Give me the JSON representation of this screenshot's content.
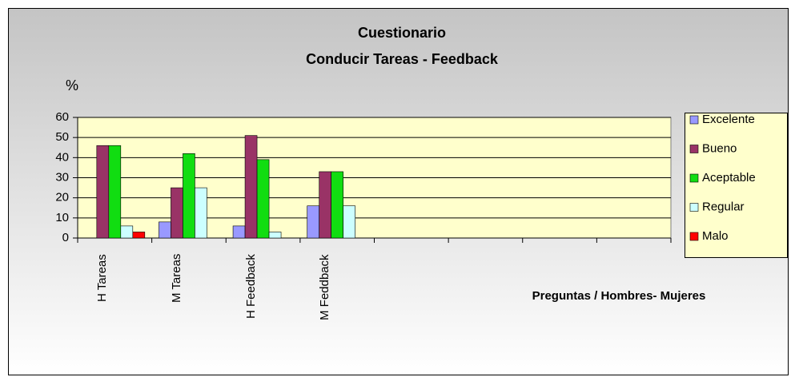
{
  "chart_data": {
    "type": "bar",
    "title": "Cuestionario",
    "subtitle": "Conducir Tareas - Feedback",
    "y_label": "%",
    "x_label": "Preguntas / Hombres- Mujeres",
    "categories": [
      "H Tareas",
      "M Tareas",
      "H Feedback",
      "M Feddback",
      null,
      null,
      null,
      null
    ],
    "series": [
      {
        "name": "Excelente",
        "color": "#9999ff",
        "values": [
          0,
          8,
          6,
          16,
          null,
          null,
          null,
          null
        ]
      },
      {
        "name": "Bueno",
        "color": "#993366",
        "values": [
          46,
          25,
          51,
          33,
          null,
          null,
          null,
          null
        ]
      },
      {
        "name": "Aceptable",
        "color": "#11dd11",
        "values": [
          46,
          42,
          39,
          33,
          null,
          null,
          null,
          null
        ]
      },
      {
        "name": "Regular",
        "color": "#ccffff",
        "values": [
          6,
          25,
          3,
          16,
          null,
          null,
          null,
          null
        ]
      },
      {
        "name": "Malo",
        "color": "#ff0000",
        "values": [
          3,
          0,
          0,
          0,
          null,
          null,
          null,
          null
        ]
      }
    ],
    "ylim": [
      0,
      60
    ],
    "yticks": [
      0,
      10,
      20,
      30,
      40,
      50,
      60
    ],
    "grid": true,
    "legend": "right"
  }
}
